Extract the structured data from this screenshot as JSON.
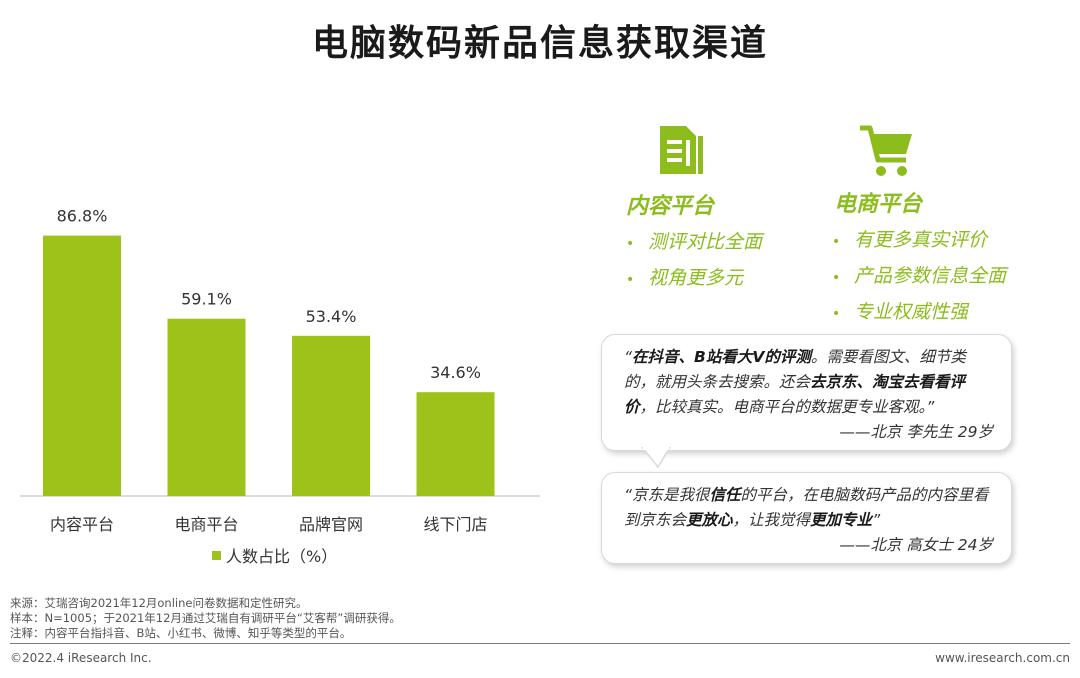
{
  "title": "电脑数码新品信息获取渠道",
  "chart_data": {
    "type": "bar",
    "categories": [
      "内容平台",
      "电商平台",
      "品牌官网",
      "线下门店"
    ],
    "series": [
      {
        "name": "人数占比（%）",
        "values": [
          86.8,
          59.1,
          53.4,
          34.6
        ]
      }
    ],
    "value_labels": [
      "86.8%",
      "59.1%",
      "53.4%",
      "34.6%"
    ],
    "ylim": [
      0,
      100
    ],
    "bar_color": "#9dc31a",
    "legend_position": "bottom"
  },
  "legend_label": "人数占比（%）",
  "features": {
    "content": {
      "icon": "document-icon",
      "title": "内容平台",
      "points": [
        "测评对比全面",
        "视角更多元"
      ]
    },
    "ecommerce": {
      "icon": "shopping-cart-icon",
      "title": "电商平台",
      "points": [
        "有更多真实评价",
        "产品参数信息全面",
        "专业权威性强"
      ]
    },
    "accent_color": "#8cbd1d"
  },
  "quotes": [
    {
      "parts": [
        {
          "t": "“",
          "b": false
        },
        {
          "t": "在抖音、B站看大V的评测",
          "b": true
        },
        {
          "t": "。需要看图文、细节类的，就用头条去搜索。还会",
          "b": false
        },
        {
          "t": "去京东、淘宝去看看评价",
          "b": true
        },
        {
          "t": "，比较真实。电商平台的数据更专业客观。”",
          "b": false
        }
      ],
      "signature": "——北京  李先生  29岁"
    },
    {
      "parts": [
        {
          "t": "“京东是我很",
          "b": false
        },
        {
          "t": "信任",
          "b": true
        },
        {
          "t": "的平台，在电脑数码产品的内容里看到京东会",
          "b": false
        },
        {
          "t": "更放心",
          "b": true
        },
        {
          "t": "，让我觉得",
          "b": false
        },
        {
          "t": "更加专业",
          "b": true
        },
        {
          "t": "”",
          "b": false
        }
      ],
      "signature": "——北京  高女士  24岁"
    }
  ],
  "notes": [
    "来源：艾瑞咨询2021年12月online问卷数据和定性研究。",
    "样本：N=1005；于2021年12月通过艾瑞自有调研平台“艾客帮”调研获得。",
    "注释：内容平台指抖音、B站、小红书、微博、知乎等类型的平台。"
  ],
  "footer": {
    "copyright": "©2022.4 iResearch Inc.",
    "website": "www.iresearch.com.cn"
  }
}
